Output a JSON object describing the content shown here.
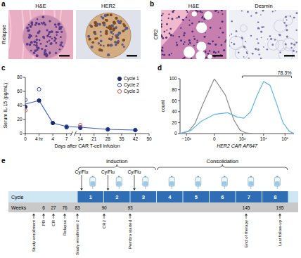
{
  "panel_labels": [
    "a",
    "b",
    "c",
    "d",
    "e"
  ],
  "panels": [
    {
      "row_label": "Relapse",
      "images": [
        "H&E",
        "HER2"
      ]
    },
    {
      "row_label": "CR2",
      "images": [
        "H&E",
        "Desmin"
      ]
    }
  ],
  "chart_data": [
    {
      "type": "scatter",
      "y_label": "Serum IL-15 (pg/mL)",
      "x_label": "Days after CAR T-cell infusion",
      "xlim": [
        0,
        50
      ],
      "xticks": [
        0,
        {
          "value": 0.17,
          "label": "4 hr"
        },
        4,
        7,
        14,
        21,
        28,
        35,
        42,
        50
      ],
      "ylim": [
        0,
        80
      ],
      "yticks": [
        0,
        20,
        40,
        60,
        80
      ],
      "legend": "top-right",
      "series": [
        {
          "type": "line",
          "color": "#3a5bc7",
          "x": [
            0,
            0.17,
            4,
            7,
            14,
            28,
            42
          ],
          "values": [
            42,
            47,
            15,
            10,
            9,
            6,
            5
          ]
        },
        {
          "name": "Cycle 1",
          "color": "#1c2a6e",
          "marker": "filled",
          "x": [
            0,
            0.17,
            4,
            7,
            14,
            28,
            42
          ],
          "values": [
            38,
            47,
            15,
            9,
            8,
            6,
            5
          ]
        },
        {
          "name": "Cycle 2",
          "color": "#2f4fc4",
          "marker": "open",
          "x": [
            0,
            0.17,
            7,
            14,
            28,
            42
          ],
          "values": [
            48,
            63,
            10,
            9,
            6,
            5
          ]
        },
        {
          "name": "Cycle 3",
          "color": "#e0533d",
          "marker": "open",
          "x": [
            0,
            14
          ],
          "values": [
            33,
            12
          ]
        }
      ]
    },
    {
      "type": "line",
      "log": "x",
      "y_label": "count",
      "x_label": "HER2 CAR AF647",
      "xlim": [
        -2000,
        262144
      ],
      "xticks": [
        {
          "value": -1000,
          "label": "−10³"
        },
        0,
        {
          "value": 1000,
          "label": "10³"
        },
        {
          "value": 10000,
          "label": "10⁴"
        },
        {
          "value": 100000,
          "label": "10⁵"
        }
      ],
      "ylim": [
        0,
        100
      ],
      "yticks": [
        0,
        20,
        40,
        60,
        80,
        100
      ],
      "series": [
        {
          "color": "#8a8a8a",
          "x": [
            -2000,
            -800,
            -400,
            -150,
            0,
            150,
            400,
            800,
            1500,
            3000
          ],
          "values": [
            0,
            4,
            18,
            55,
            100,
            70,
            25,
            6,
            1,
            0
          ]
        },
        {
          "color": "#5bb5e8",
          "x": [
            -2000,
            -600,
            -200,
            0,
            200,
            600,
            1200,
            2500,
            5000,
            10000,
            20000,
            40000,
            80000,
            160000,
            262144
          ],
          "values": [
            0,
            6,
            22,
            35,
            38,
            30,
            28,
            40,
            70,
            95,
            88,
            55,
            20,
            4,
            0
          ]
        }
      ],
      "annotations": [
        {
          "text": "78.3%",
          "x": [
            1000,
            200000
          ]
        }
      ]
    }
  ],
  "timeline": {
    "phases": [
      {
        "label": "Induction",
        "cycles": [
          1,
          3
        ]
      },
      {
        "label": "Consolidation",
        "cycles": [
          4,
          8
        ]
      }
    ],
    "cy_flu": {
      "label": "Cy/Flu",
      "cycles": [
        1,
        2,
        3
      ]
    },
    "cycle_label": "Cycle",
    "weeks_label": "Weeks",
    "cycles": [
      1,
      2,
      3,
      4,
      5,
      6,
      7,
      8
    ],
    "events": [
      {
        "label": "Study enrollment"
      },
      {
        "label": "PR",
        "week": 6
      },
      {
        "label": "CR",
        "week": 27
      },
      {
        "label": "Relapse",
        "week": 76
      },
      {
        "label": "Study enrollment 2",
        "week": 83
      },
      {
        "label": "CR2",
        "week": 90
      },
      {
        "label": "Pembro started",
        "week": 93
      },
      {
        "label": "End of therapy",
        "week": 145
      },
      {
        "label": "Last follow-up",
        "week": 195
      }
    ]
  }
}
